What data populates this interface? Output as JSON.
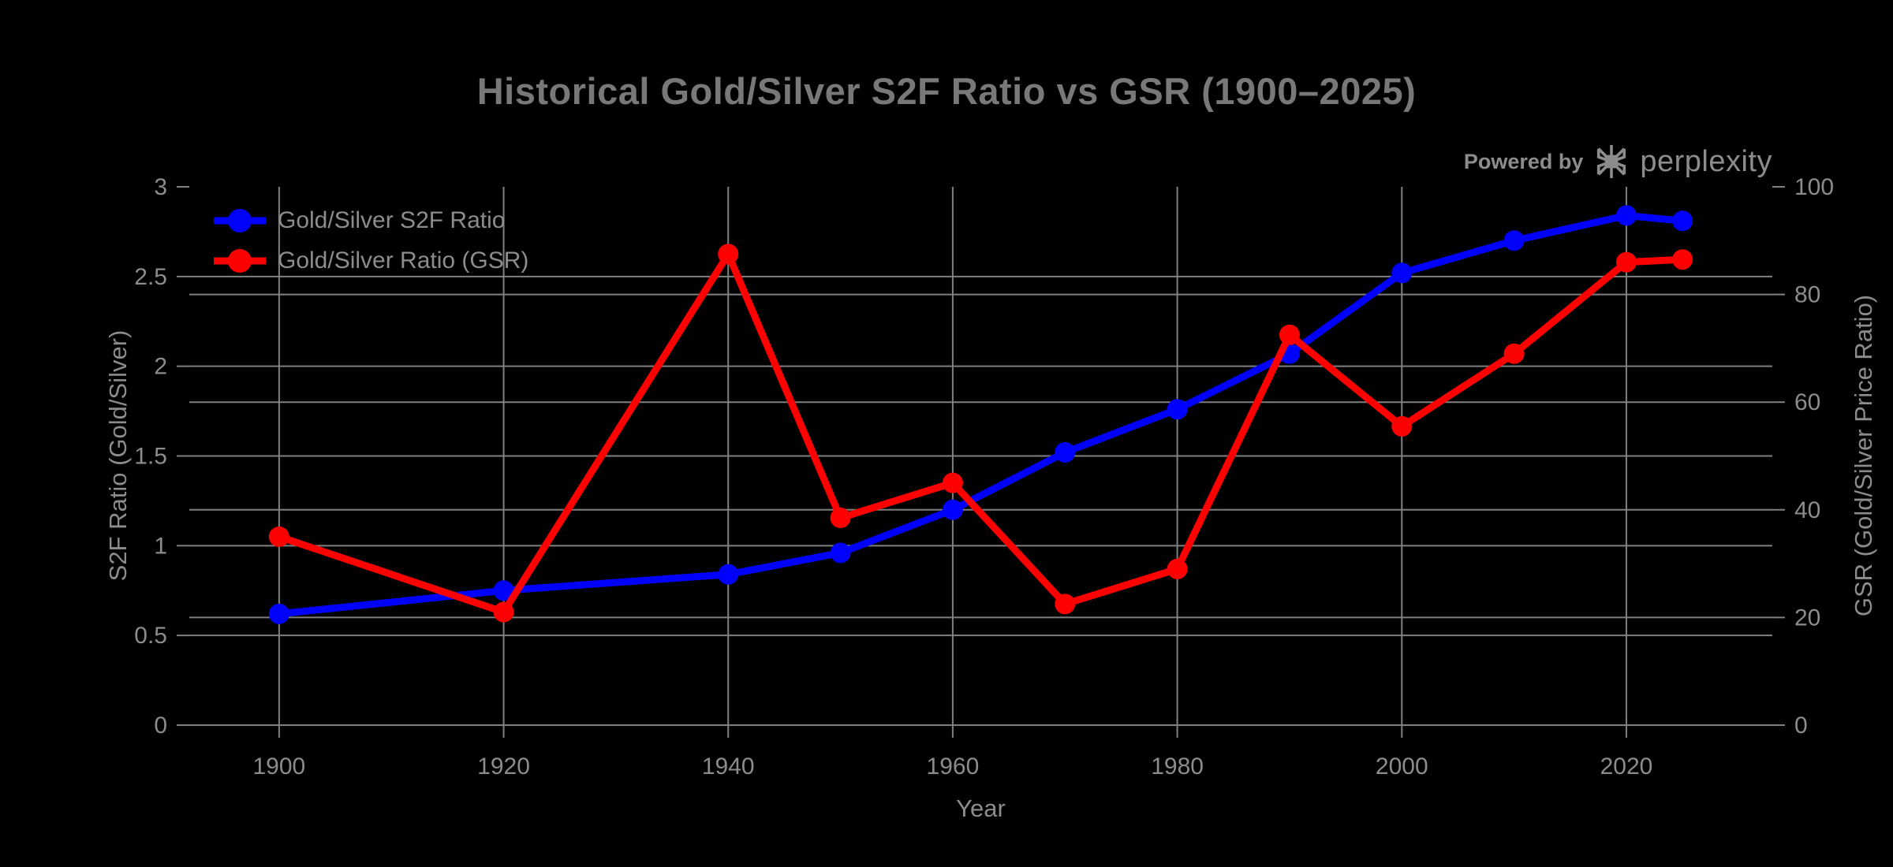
{
  "branding": {
    "powered_by": "Powered by",
    "brand": "perplexity"
  },
  "colors": {
    "background": "#000000",
    "grid": "#808080",
    "tick_text": "#8c8c8c",
    "title_text": "#787878",
    "s2f_blue": "#0000ff",
    "gsr_red": "#ff0000"
  },
  "chart_data": {
    "type": "line",
    "title": "Historical Gold/Silver S2F Ratio vs GSR (1900–2025)",
    "xlabel": "Year",
    "ylabel_left": "S2F Ratio (Gold/Silver)",
    "ylabel_right": "GSR (Gold/Silver Price Ratio)",
    "x": [
      1900,
      1920,
      1940,
      1950,
      1960,
      1970,
      1980,
      1990,
      2000,
      2010,
      2020,
      2025
    ],
    "series": [
      {
        "name": "Gold/Silver S2F Ratio",
        "axis": "left",
        "color": "#0000ff",
        "values": [
          0.62,
          0.75,
          0.84,
          0.96,
          1.2,
          1.52,
          1.76,
          2.07,
          2.52,
          2.7,
          2.84,
          2.81
        ]
      },
      {
        "name": "Gold/Silver Ratio (GSR)",
        "axis": "right",
        "color": "#ff0000",
        "values": [
          35,
          21,
          87.5,
          38.5,
          45,
          22.5,
          29,
          72.5,
          55.5,
          69,
          86,
          86.5
        ]
      }
    ],
    "x_ticks": [
      1900,
      1920,
      1940,
      1960,
      1980,
      2000,
      2020
    ],
    "y_left_ticks": [
      0,
      0.5,
      1,
      1.5,
      2,
      2.5,
      3
    ],
    "y_right_ticks": [
      0,
      20,
      40,
      60,
      80,
      100
    ],
    "x_range": [
      1892,
      2033
    ],
    "y_left_range": [
      0,
      3
    ],
    "y_right_range": [
      0,
      100
    ],
    "grid": true,
    "legend_position": "top-left"
  }
}
